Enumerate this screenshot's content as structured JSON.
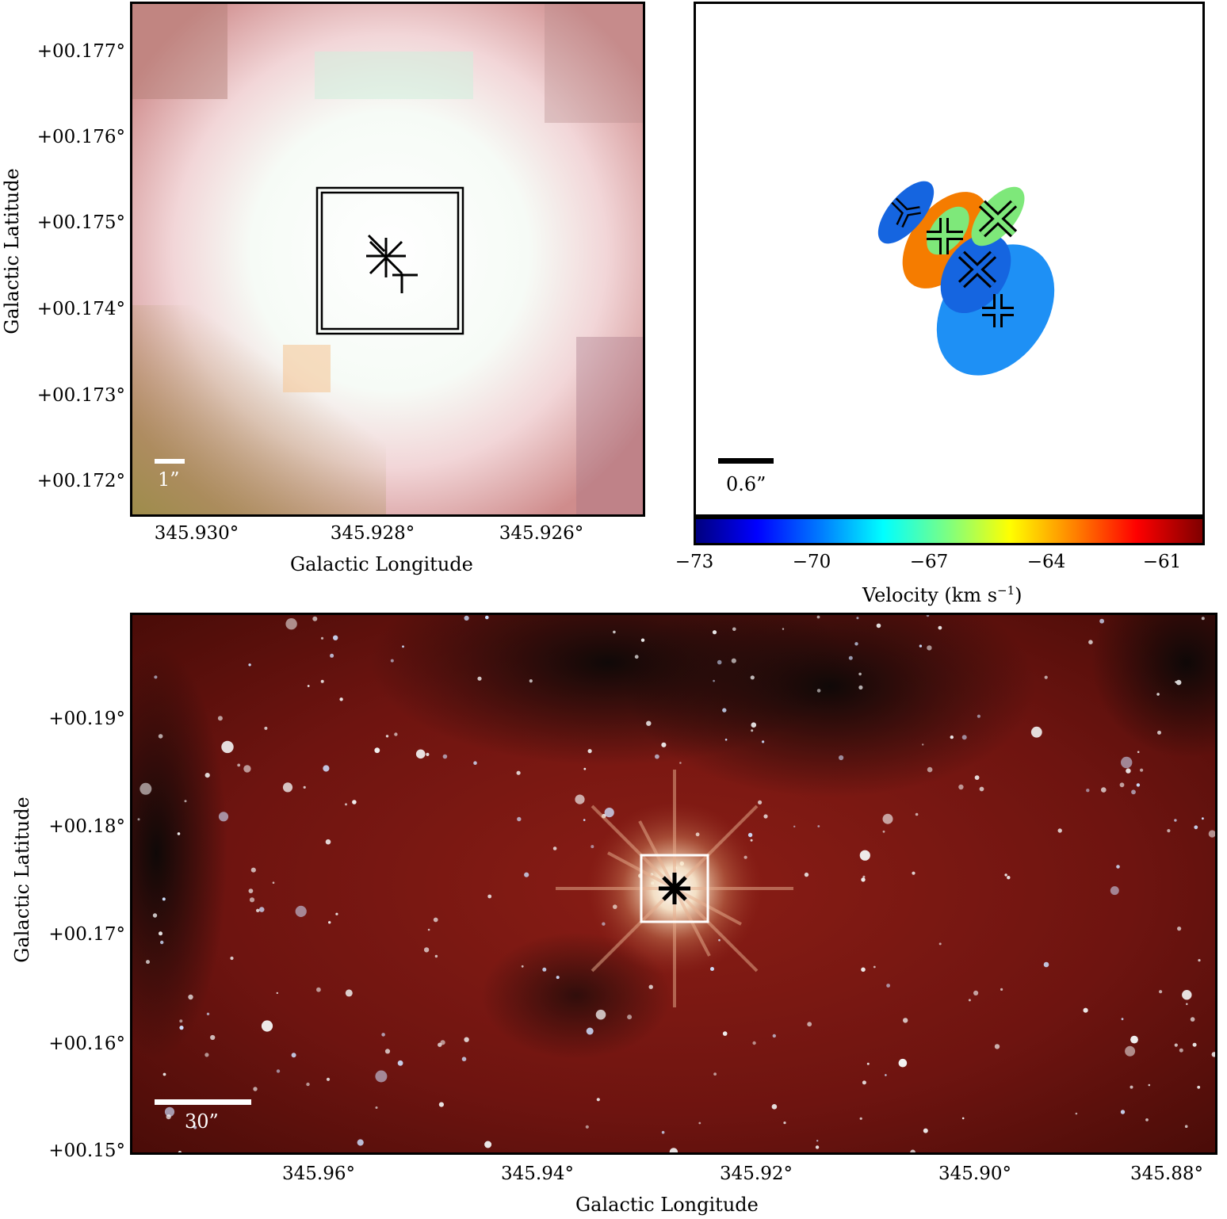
{
  "panel_top_left": {
    "xlabel": "Galactic Longitude",
    "ylabel": "Galactic Latitude",
    "x_ticks": [
      "345.930°",
      "345.928°",
      "345.926°"
    ],
    "y_ticks": [
      "+00.177°",
      "+00.176°",
      "+00.175°",
      "+00.174°",
      "+00.173°",
      "+00.172°"
    ],
    "scalebar_label": "1”"
  },
  "panel_top_right": {
    "scalebar_label": "0.6”",
    "colorbar": {
      "label": "Velocity (km s",
      "label_sup": "−1",
      "label_close": ")",
      "ticks": [
        "−73",
        "−70",
        "−67",
        "−64",
        "−61"
      ]
    },
    "chart_data": {
      "type": "scatter",
      "x_unit": "relative offset",
      "markers": [
        {
          "symbol": "Y",
          "velocity": -71.5
        },
        {
          "symbol": "+",
          "velocity": -67
        },
        {
          "symbol": "x",
          "velocity": -66
        },
        {
          "symbol": "x",
          "velocity": -70.5
        },
        {
          "symbol": "+",
          "velocity": -69.5
        }
      ],
      "ellipse_velocities": [
        -71.5,
        -62.5,
        -66.5,
        -66,
        -70.5,
        -69.5
      ]
    }
  },
  "panel_bottom": {
    "xlabel": "Galactic Longitude",
    "ylabel": "Galactic Latitude",
    "x_ticks": [
      "345.96°",
      "345.94°",
      "345.92°",
      "345.90°",
      "345.88°"
    ],
    "y_ticks": [
      "+00.19°",
      "+00.18°",
      "+00.17°",
      "+00.16°",
      "+00.15°"
    ],
    "scalebar_label": "30”"
  },
  "colors": {
    "blue_dark": "#1565e0",
    "blue_light": "#1e90f5",
    "orange": "#f57c00",
    "green": "#7ee87a",
    "nebula_red": "#7a1510"
  }
}
